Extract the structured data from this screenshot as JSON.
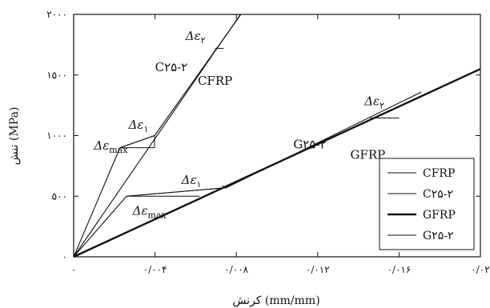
{
  "chart_data": {
    "type": "line",
    "xlabel": "کرنش (mm/mm)",
    "ylabel": "تنش (MPa)",
    "xlim": [
      0,
      0.02
    ],
    "ylim": [
      0,
      2000
    ],
    "x_tick_labels": [
      "۰",
      "۰/۰۰۴",
      "۰/۰۰۸",
      "۰/۰۱۲",
      "۰/۰۱۶",
      "۰/۰۲"
    ],
    "x_tick_values": [
      0,
      0.004,
      0.008,
      0.012,
      0.016,
      0.02
    ],
    "y_tick_labels": [
      "۰",
      "۵۰۰",
      "۱۰۰۰",
      "۱۵۰۰",
      "۲۰۰۰"
    ],
    "y_tick_values": [
      0,
      500,
      1000,
      1500,
      2000
    ],
    "grid": false,
    "legend_position": "bottom-right",
    "legend_entries": [
      {
        "label": "CFRP",
        "weight": "thin"
      },
      {
        "label": "C۲۵-۲",
        "weight": "thin"
      },
      {
        "label": "GFRP",
        "weight": "thick"
      },
      {
        "label": "G۲۵-۲",
        "weight": "thin"
      }
    ],
    "series": [
      {
        "name": "CFRP",
        "x": [
          0,
          0.0082
        ],
        "y": [
          0,
          2000
        ]
      },
      {
        "name": "C۲۵-۲",
        "x": [
          0,
          0.00228,
          0.00398,
          0.00822
        ],
        "y": [
          0,
          900,
          1000,
          2000
        ]
      },
      {
        "name": "GFRP",
        "x": [
          0,
          0.02
        ],
        "y": [
          0,
          1550
        ]
      },
      {
        "name": "G۲۵-۲",
        "x": [
          0,
          0.0026,
          0.0075,
          0.0171
        ],
        "y": [
          0,
          500,
          570,
          1360
        ]
      }
    ],
    "annotations": [
      {
        "text": "Δε",
        "sub": "max",
        "x": 0.001,
        "y": 885
      },
      {
        "text": "Δε",
        "sub": "۱",
        "x": 0.0027,
        "y": 1055
      },
      {
        "text": "Δε",
        "sub": "۲",
        "x": 0.0055,
        "y": 1790
      },
      {
        "text": "C۲۵-۲",
        "x": 0.004,
        "y": 1530
      },
      {
        "text": "CFRP",
        "x": 0.0061,
        "y": 1420
      },
      {
        "text": "Δε",
        "sub": "max",
        "x": 0.0029,
        "y": 345
      },
      {
        "text": "Δε",
        "sub": "۱",
        "x": 0.0053,
        "y": 600
      },
      {
        "text": "Δε",
        "sub": "۲",
        "x": 0.0143,
        "y": 1250
      },
      {
        "text": "G۲۵-۲",
        "x": 0.0108,
        "y": 895
      },
      {
        "text": "GFRP",
        "x": 0.0136,
        "y": 810
      }
    ],
    "marker_segments": [
      {
        "x1": 0.00228,
        "y1": 900,
        "x2": 0.00398,
        "y2": 900
      },
      {
        "x1": 0.00398,
        "y1": 900,
        "x2": 0.00398,
        "y2": 1000
      },
      {
        "x1": 0.00228,
        "y1": 900,
        "x2": 0.00398,
        "y2": 1000
      },
      {
        "x1": 0.0026,
        "y1": 500,
        "x2": 0.0062,
        "y2": 500
      },
      {
        "x1": 0.0026,
        "y1": 500,
        "x2": 0.0075,
        "y2": 570
      },
      {
        "x1": 0.0075,
        "y1": 570,
        "x2": 0.0073,
        "y2": 585
      },
      {
        "x1": 0.0146,
        "y1": 1145,
        "x2": 0.016,
        "y2": 1145
      },
      {
        "x1": 0.00695,
        "y1": 1720,
        "x2": 0.00738,
        "y2": 1720
      }
    ]
  }
}
